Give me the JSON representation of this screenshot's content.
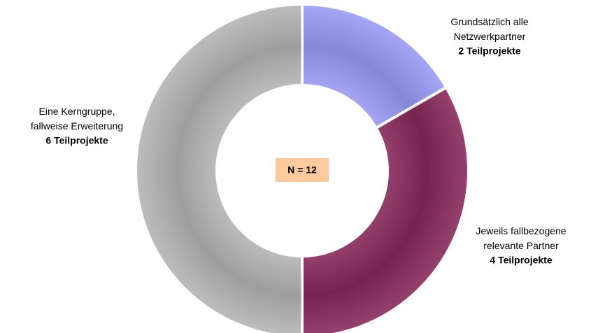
{
  "chart_data": {
    "type": "donut",
    "categories": [
      "Grundsätzlich alle Netzwerkpartner",
      "Jeweils fallbezogene relevante Partner",
      "Eine Kerngruppe, fallweise Erweiterung"
    ],
    "values": [
      2,
      4,
      6
    ],
    "value_labels": [
      "2 Teilprojekte",
      "4 Teilprojekte",
      "6 Teilprojekte"
    ],
    "colors": [
      "#9a9af5",
      "#86285a",
      "#b4b4b4"
    ],
    "annotation": "N = 12"
  }
}
